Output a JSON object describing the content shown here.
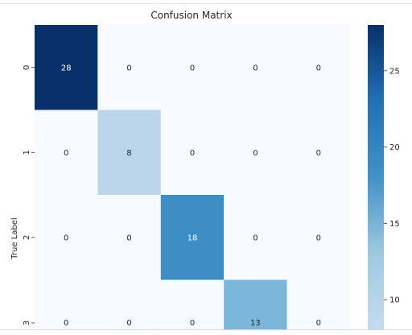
{
  "chart_data": {
    "type": "heatmap",
    "title": "Confusion Matrix",
    "ylabel": "True Label",
    "xlabel": "",
    "row_labels": [
      "0",
      "1",
      "2",
      "3"
    ],
    "matrix": [
      [
        28,
        0,
        0,
        0,
        0
      ],
      [
        0,
        8,
        0,
        0,
        0
      ],
      [
        0,
        0,
        18,
        0,
        0
      ],
      [
        0,
        0,
        0,
        13,
        0
      ]
    ],
    "colormap": "Blues",
    "vmin": 0,
    "vmax": 28,
    "colorbar_range": [
      8,
      28
    ],
    "colorbar_ticks": [
      10,
      15,
      20,
      25
    ],
    "colors": {
      "max": "#08306b",
      "min": "#f7fbff",
      "text_dark": "#262626",
      "text_light": "#ffffff"
    }
  }
}
